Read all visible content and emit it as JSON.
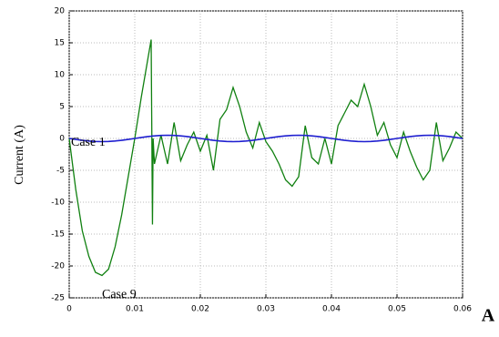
{
  "chart_data": {
    "type": "line",
    "y_label": "Current (A)",
    "annotations": [
      "Case 1",
      "Case 9"
    ],
    "panel_label": "A",
    "grid": true,
    "xlim": [
      0,
      0.06
    ],
    "xticks": [
      0,
      0.01,
      0.02,
      0.03,
      0.04,
      0.05,
      0.06
    ],
    "ylim": [
      -25,
      20
    ],
    "yticks": [
      -25,
      -20,
      -15,
      -10,
      -5,
      0,
      5,
      10,
      15,
      20
    ],
    "x": [
      0,
      0.001,
      0.002,
      0.003,
      0.004,
      0.005,
      0.006,
      0.007,
      0.008,
      0.009,
      0.01,
      0.011,
      0.012,
      0.0125,
      0.0127,
      0.0128,
      0.013,
      0.014,
      0.015,
      0.016,
      0.017,
      0.018,
      0.019,
      0.02,
      0.021,
      0.022,
      0.023,
      0.024,
      0.025,
      0.026,
      0.027,
      0.028,
      0.029,
      0.03,
      0.031,
      0.032,
      0.033,
      0.034,
      0.035,
      0.036,
      0.037,
      0.038,
      0.039,
      0.04,
      0.041,
      0.042,
      0.043,
      0.044,
      0.045,
      0.046,
      0.047,
      0.048,
      0.049,
      0.05,
      0.051,
      0.052,
      0.053,
      0.054,
      0.055,
      0.056,
      0.057,
      0.058,
      0.059,
      0.06
    ],
    "series": [
      {
        "name": "Case 1",
        "color": "#1f1fd0",
        "values": [
          0,
          -0.15,
          -0.29,
          -0.4,
          -0.48,
          -0.5,
          -0.48,
          -0.4,
          -0.29,
          -0.15,
          0,
          0.15,
          0.29,
          0.35,
          0.38,
          0.39,
          0.4,
          0.48,
          0.5,
          0.48,
          0.4,
          0.29,
          0.15,
          0,
          -0.15,
          -0.29,
          -0.4,
          -0.48,
          -0.5,
          -0.48,
          -0.4,
          -0.29,
          -0.15,
          0,
          0.15,
          0.29,
          0.4,
          0.48,
          0.5,
          0.48,
          0.4,
          0.29,
          0.15,
          0,
          -0.15,
          -0.29,
          -0.4,
          -0.48,
          -0.5,
          -0.48,
          -0.4,
          -0.29,
          -0.15,
          0,
          0.15,
          0.29,
          0.4,
          0.48,
          0.5,
          0.48,
          0.4,
          0.29,
          0.15,
          0
        ]
      },
      {
        "name": "Case 9",
        "color": "#108010",
        "values": [
          0,
          -8,
          -14.5,
          -18.5,
          -21,
          -21.5,
          -20.5,
          -17,
          -12,
          -6,
          0,
          6.5,
          12.5,
          15.5,
          -13.5,
          0,
          -4,
          0.5,
          -4,
          2.5,
          -3.5,
          -1,
          1,
          -2,
          0.5,
          -5,
          3,
          4.5,
          8,
          5,
          1,
          -1.5,
          2.5,
          -0.5,
          -2,
          -4,
          -6.5,
          -7.5,
          -6,
          2,
          -3,
          -4,
          0,
          -4,
          2,
          4,
          6,
          5,
          8.5,
          5,
          0.5,
          2.5,
          -1,
          -3,
          1,
          -2,
          -4.5,
          -6.5,
          -5,
          2.5,
          -3.5,
          -1.5,
          1,
          0
        ]
      }
    ]
  }
}
